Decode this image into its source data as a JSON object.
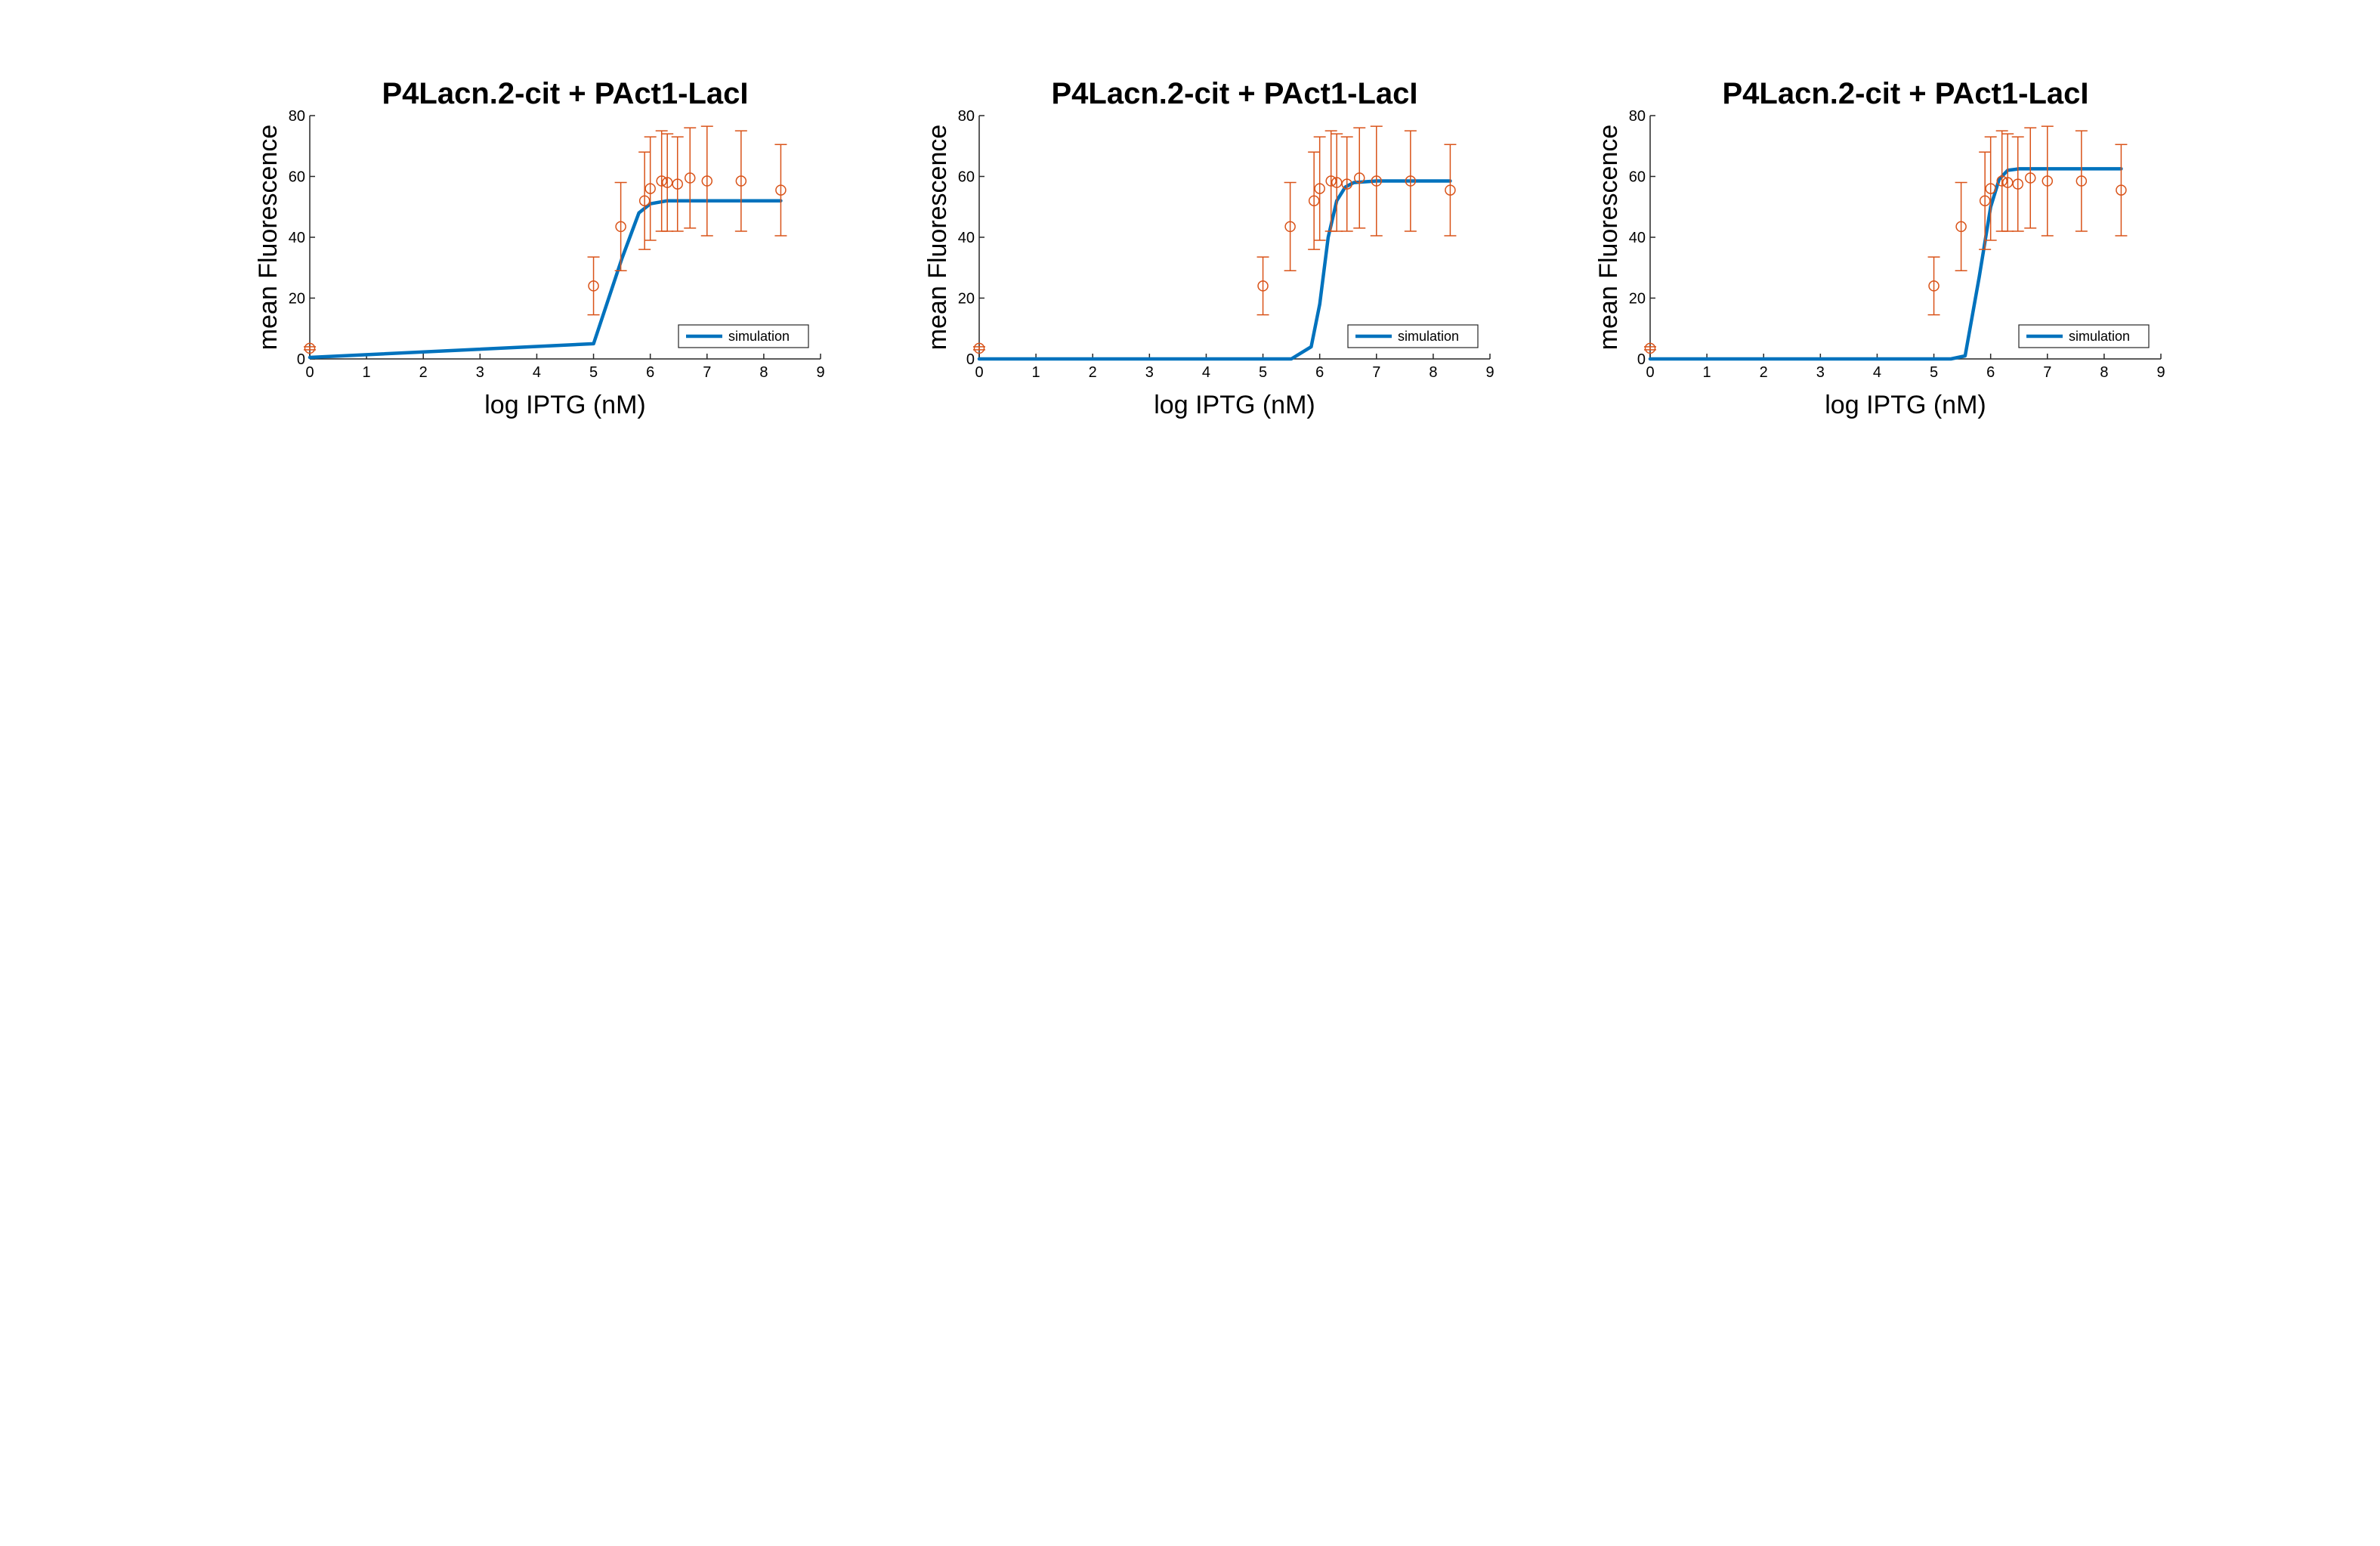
{
  "colors": {
    "simulation": "#0072BD",
    "experiment": "#D95319"
  },
  "chart_data": [
    {
      "type": "line",
      "title": "P4Lacn.2-cit + PAct1-LacI",
      "xlabel": "log IPTG (nM)",
      "ylabel": "mean Fluorescence",
      "xlim": [
        0,
        9
      ],
      "ylim": [
        0,
        80
      ],
      "xticks": [
        0,
        1,
        2,
        3,
        4,
        5,
        6,
        7,
        8,
        9
      ],
      "yticks": [
        0,
        20,
        40,
        60,
        80
      ],
      "xtick_labels": [
        "0",
        "1",
        "2",
        "3",
        "4",
        "5",
        "6",
        "7",
        "8",
        "9"
      ],
      "ytick_labels": [
        "0",
        "20",
        "40",
        "60",
        "80"
      ],
      "legend": {
        "entries": [
          "simulation"
        ],
        "location": "lower-right"
      },
      "series": [
        {
          "name": "simulation",
          "style": "line",
          "x": [
            0,
            5,
            5.5,
            5.8,
            6,
            6.3,
            6.6,
            7,
            8.3
          ],
          "y": [
            0.5,
            5,
            33,
            48,
            51,
            52,
            52,
            52,
            52
          ]
        },
        {
          "style": "errorbar",
          "x": [
            0,
            5,
            5.48,
            5.9,
            6,
            6.2,
            6.3,
            6.48,
            6.7,
            7,
            7.6,
            8.3
          ],
          "y": [
            3.5,
            24,
            43.5,
            52,
            56,
            58.5,
            58,
            57.5,
            59.5,
            58.5,
            58.5,
            55.5
          ],
          "err": [
            0.5,
            9.5,
            14.5,
            16,
            17,
            16.5,
            16,
            15.5,
            16.5,
            18,
            16.5,
            15
          ]
        }
      ]
    },
    {
      "type": "line",
      "title": "P4Lacn.2-cit + PAct1-LacI",
      "xlabel": "log IPTG (nM)",
      "ylabel": "mean Fluorescence",
      "xlim": [
        0,
        9
      ],
      "ylim": [
        0,
        80
      ],
      "xticks": [
        0,
        1,
        2,
        3,
        4,
        5,
        6,
        7,
        8,
        9
      ],
      "yticks": [
        0,
        20,
        40,
        60,
        80
      ],
      "xtick_labels": [
        "0",
        "1",
        "2",
        "3",
        "4",
        "5",
        "6",
        "7",
        "8",
        "9"
      ],
      "ytick_labels": [
        "0",
        "20",
        "40",
        "60",
        "80"
      ],
      "legend": {
        "entries": [
          "simulation"
        ],
        "location": "lower-right"
      },
      "series": [
        {
          "name": "simulation",
          "style": "line",
          "x": [
            0,
            5.5,
            5.85,
            6,
            6.15,
            6.3,
            6.45,
            6.6,
            7,
            8.3
          ],
          "y": [
            0,
            0,
            4,
            18,
            40,
            52,
            56.5,
            58,
            58.5,
            58.5
          ]
        },
        {
          "style": "errorbar",
          "x": [
            0,
            5,
            5.48,
            5.9,
            6,
            6.2,
            6.3,
            6.48,
            6.7,
            7,
            7.6,
            8.3
          ],
          "y": [
            3.5,
            24,
            43.5,
            52,
            56,
            58.5,
            58,
            57.5,
            59.5,
            58.5,
            58.5,
            55.5
          ],
          "err": [
            0.5,
            9.5,
            14.5,
            16,
            17,
            16.5,
            16,
            15.5,
            16.5,
            18,
            16.5,
            15
          ]
        }
      ]
    },
    {
      "type": "line",
      "title": "P4Lacn.2-cit + PAct1-LacI",
      "xlabel": "log IPTG (nM)",
      "ylabel": "mean Fluorescence",
      "xlim": [
        0,
        9
      ],
      "ylim": [
        0,
        80
      ],
      "xticks": [
        0,
        1,
        2,
        3,
        4,
        5,
        6,
        7,
        8,
        9
      ],
      "yticks": [
        0,
        20,
        40,
        60,
        80
      ],
      "xtick_labels": [
        "0",
        "1",
        "2",
        "3",
        "4",
        "5",
        "6",
        "7",
        "8",
        "9"
      ],
      "ytick_labels": [
        "0",
        "20",
        "40",
        "60",
        "80"
      ],
      "legend": {
        "entries": [
          "simulation"
        ],
        "location": "lower-right"
      },
      "series": [
        {
          "name": "simulation",
          "style": "line",
          "x": [
            0,
            5.3,
            5.55,
            5.8,
            6,
            6.15,
            6.3,
            6.5,
            7,
            8.3
          ],
          "y": [
            0,
            0,
            1,
            27,
            50,
            59,
            62,
            62.5,
            62.5,
            62.5
          ]
        },
        {
          "style": "errorbar",
          "x": [
            0,
            5,
            5.48,
            5.9,
            6,
            6.2,
            6.3,
            6.48,
            6.7,
            7,
            7.6,
            8.3
          ],
          "y": [
            3.5,
            24,
            43.5,
            52,
            56,
            58.5,
            58,
            57.5,
            59.5,
            58.5,
            58.5,
            55.5
          ],
          "err": [
            0.5,
            9.5,
            14.5,
            16,
            17,
            16.5,
            16,
            15.5,
            16.5,
            18,
            16.5,
            15
          ]
        }
      ]
    }
  ]
}
